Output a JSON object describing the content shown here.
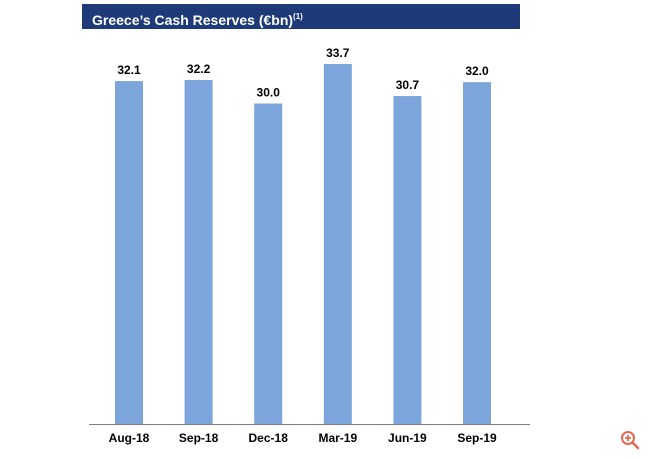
{
  "title": {
    "main": "Greece’s Cash Reserves (€bn)",
    "superscript": "(1)"
  },
  "colors": {
    "banner": "#1e3a78",
    "bar": "#7ba5db",
    "axis": "#7f7f7f",
    "zoom_icon": "#e8674f"
  },
  "icons": {
    "zoom": "zoom-in-icon"
  },
  "chart_data": {
    "type": "bar",
    "title": "Greece’s Cash Reserves (€bn)(1)",
    "xlabel": "",
    "ylabel": "",
    "categories": [
      "Aug-18",
      "Sep-18",
      "Dec-18",
      "Mar-19",
      "Jun-19",
      "Sep-19"
    ],
    "values": [
      32.1,
      32.2,
      30.0,
      33.7,
      30.7,
      32.0
    ],
    "value_labels": [
      "32.1",
      "32.2",
      "30.0",
      "33.7",
      "30.7",
      "32.0"
    ],
    "ylim": [
      0,
      33.7
    ],
    "grid": false,
    "y_axis_visible": false,
    "legend": "none"
  }
}
